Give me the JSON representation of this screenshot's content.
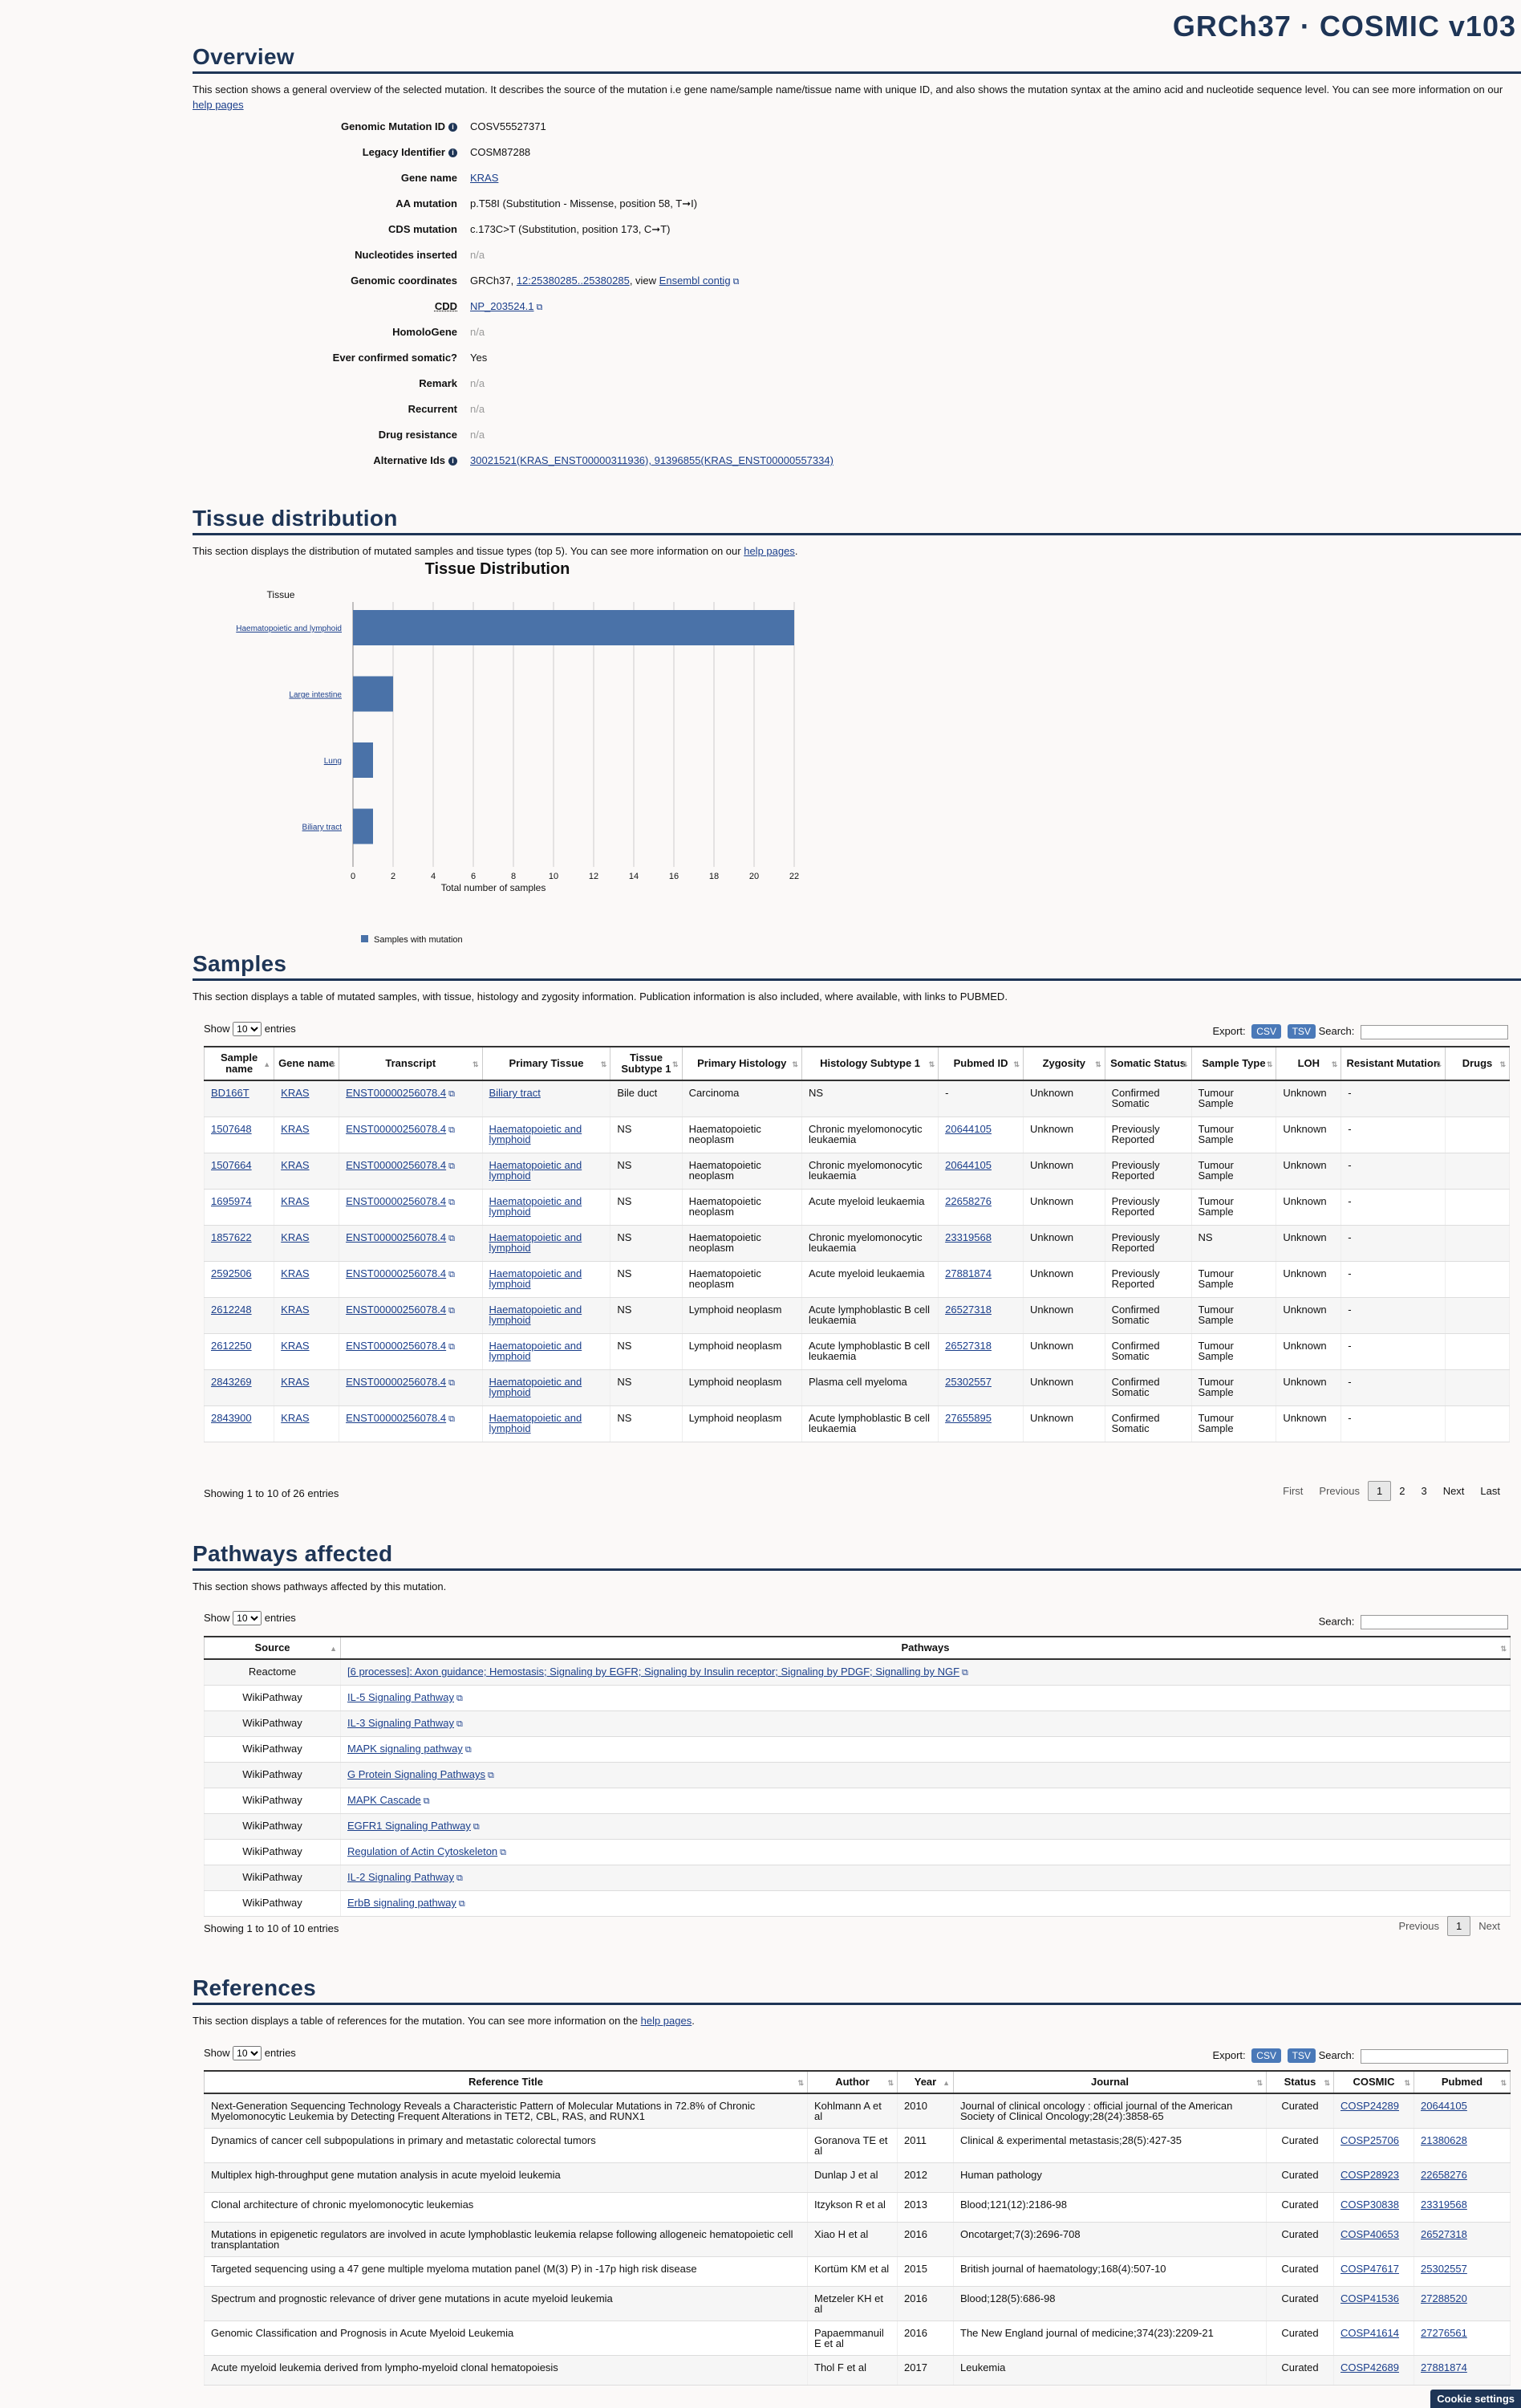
{
  "header": {
    "brand": "GRCh37 · COSMIC v103"
  },
  "overview": {
    "title": "Overview",
    "intro_a": "This section shows a general overview of the selected mutation. It describes the source of the mutation i.e gene name/sample name/tissue name with unique ID, and also shows the mutation syntax at the amino acid and nucleotide sequence level. You can see more information on our",
    "intro_link": "help pages",
    "rows": [
      {
        "key": "Genomic Mutation ID",
        "value": "COSV55527371"
      },
      {
        "key": "Legacy Identifier",
        "value": "COSM87288"
      },
      {
        "key": "Gene name",
        "value": "KRAS"
      },
      {
        "key": "AA mutation",
        "value": "p.T58I (Substitution - Missense, position 58, T➞I)"
      },
      {
        "key": "CDS mutation",
        "value": "c.173C>T (Substitution, position 173, C➞T)"
      },
      {
        "key": "Nucleotides inserted",
        "value": "n/a"
      },
      {
        "key": "Genomic coordinates",
        "value_a": "GRCh37,",
        "value_link1": "12:25380285..25380285",
        "value_b": ", view",
        "value_link2": "Ensembl contig"
      },
      {
        "key": "CDD",
        "value": "NP_203524.1"
      },
      {
        "key": "HomoloGene",
        "value": "n/a"
      },
      {
        "key": "Ever confirmed somatic?",
        "value": "Yes"
      },
      {
        "key": "Remark",
        "value": "n/a"
      },
      {
        "key": "Recurrent",
        "value": "n/a"
      },
      {
        "key": "Drug resistance",
        "value": "n/a"
      },
      {
        "key": "Alternative Ids",
        "value": "30021521(KRAS_ENST00000311936), 91396855(KRAS_ENST00000557334)"
      }
    ]
  },
  "tissue": {
    "title": "Tissue distribution",
    "intro_a": "This section displays the distribution of mutated samples and tissue types (top 5). You can see more information on our",
    "intro_link": "help pages",
    "intro_b": "."
  },
  "chart_data": {
    "type": "bar",
    "orientation": "horizontal",
    "title": "Tissue Distribution",
    "ylabel": "Tissue",
    "xlabel": "Total number of samples",
    "categories": [
      "Haematopoietic and lymphoid",
      "Large intestine",
      "Lung",
      "Biliary tract"
    ],
    "series": [
      {
        "name": "Samples with mutation",
        "values": [
          22,
          2,
          1,
          1
        ]
      }
    ],
    "xlim": [
      0,
      22
    ],
    "xticks": [
      0,
      2,
      4,
      6,
      8,
      10,
      12,
      14,
      16,
      18,
      20,
      22
    ],
    "grid": true,
    "legend": "bottom",
    "color": "#4a72a8"
  },
  "samples": {
    "title": "Samples",
    "intro": "This section displays a table of mutated samples, with tissue, histology and zygosity information. Publication information is also included, where available, with links to PUBMED.",
    "show": "Show",
    "entries": "entries",
    "page_size": "10",
    "export": "Export:",
    "csv": "CSV",
    "tsv": "TSV",
    "search": "Search:",
    "headers": [
      "Sample name",
      "Gene name",
      "Transcript",
      "Primary Tissue",
      "Tissue Subtype 1",
      "Primary Histology",
      "Histology Subtype 1",
      "Pubmed ID",
      "Zygosity",
      "Somatic Status",
      "Sample Type",
      "LOH",
      "Resistant Mutation",
      "Drugs"
    ],
    "rows": [
      [
        "BD166T",
        "KRAS",
        "ENST00000256078.4",
        "Biliary tract",
        "Bile duct",
        "Carcinoma",
        "NS",
        "-",
        "Unknown",
        "Confirmed Somatic",
        "Tumour Sample",
        "Unknown",
        "-",
        ""
      ],
      [
        "1507648",
        "KRAS",
        "ENST00000256078.4",
        "Haematopoietic and lymphoid",
        "NS",
        "Haematopoietic neoplasm",
        "Chronic myelomonocytic leukaemia",
        "20644105",
        "Unknown",
        "Previously Reported",
        "Tumour Sample",
        "Unknown",
        "-",
        ""
      ],
      [
        "1507664",
        "KRAS",
        "ENST00000256078.4",
        "Haematopoietic and lymphoid",
        "NS",
        "Haematopoietic neoplasm",
        "Chronic myelomonocytic leukaemia",
        "20644105",
        "Unknown",
        "Previously Reported",
        "Tumour Sample",
        "Unknown",
        "-",
        ""
      ],
      [
        "1695974",
        "KRAS",
        "ENST00000256078.4",
        "Haematopoietic and lymphoid",
        "NS",
        "Haematopoietic neoplasm",
        "Acute myeloid leukaemia",
        "22658276",
        "Unknown",
        "Previously Reported",
        "Tumour Sample",
        "Unknown",
        "-",
        ""
      ],
      [
        "1857622",
        "KRAS",
        "ENST00000256078.4",
        "Haematopoietic and lymphoid",
        "NS",
        "Haematopoietic neoplasm",
        "Chronic myelomonocytic leukaemia",
        "23319568",
        "Unknown",
        "Previously Reported",
        "NS",
        "Unknown",
        "-",
        ""
      ],
      [
        "2592506",
        "KRAS",
        "ENST00000256078.4",
        "Haematopoietic and lymphoid",
        "NS",
        "Haematopoietic neoplasm",
        "Acute myeloid leukaemia",
        "27881874",
        "Unknown",
        "Previously Reported",
        "Tumour Sample",
        "Unknown",
        "-",
        ""
      ],
      [
        "2612248",
        "KRAS",
        "ENST00000256078.4",
        "Haematopoietic and lymphoid",
        "NS",
        "Lymphoid neoplasm",
        "Acute lymphoblastic B cell leukaemia",
        "26527318",
        "Unknown",
        "Confirmed Somatic",
        "Tumour Sample",
        "Unknown",
        "-",
        ""
      ],
      [
        "2612250",
        "KRAS",
        "ENST00000256078.4",
        "Haematopoietic and lymphoid",
        "NS",
        "Lymphoid neoplasm",
        "Acute lymphoblastic B cell leukaemia",
        "26527318",
        "Unknown",
        "Confirmed Somatic",
        "Tumour Sample",
        "Unknown",
        "-",
        ""
      ],
      [
        "2843269",
        "KRAS",
        "ENST00000256078.4",
        "Haematopoietic and lymphoid",
        "NS",
        "Lymphoid neoplasm",
        "Plasma cell myeloma",
        "25302557",
        "Unknown",
        "Confirmed Somatic",
        "Tumour Sample",
        "Unknown",
        "-",
        ""
      ],
      [
        "2843900",
        "KRAS",
        "ENST00000256078.4",
        "Haematopoietic and lymphoid",
        "NS",
        "Lymphoid neoplasm",
        "Acute lymphoblastic B cell leukaemia",
        "27655895",
        "Unknown",
        "Confirmed Somatic",
        "Tumour Sample",
        "Unknown",
        "-",
        ""
      ]
    ],
    "info": "Showing 1 to 10 of 26 entries",
    "pager": [
      "First",
      "Previous",
      "1",
      "2",
      "3",
      "Next",
      "Last"
    ]
  },
  "pathways": {
    "title": "Pathways affected",
    "intro": "This section shows pathways affected by this mutation.",
    "show": "Show",
    "entries": "entries",
    "page_size": "10",
    "search": "Search:",
    "headers": [
      "Source",
      "Pathways"
    ],
    "rows": [
      [
        "Reactome",
        "[6 processes]: Axon guidance; Hemostasis; Signaling by EGFR; Signaling by Insulin receptor; Signaling by PDGF; Signalling by NGF"
      ],
      [
        "WikiPathway",
        "IL-5 Signaling Pathway"
      ],
      [
        "WikiPathway",
        "IL-3 Signaling Pathway"
      ],
      [
        "WikiPathway",
        "MAPK signaling pathway"
      ],
      [
        "WikiPathway",
        "G Protein Signaling Pathways"
      ],
      [
        "WikiPathway",
        "MAPK Cascade"
      ],
      [
        "WikiPathway",
        "EGFR1 Signaling Pathway"
      ],
      [
        "WikiPathway",
        "Regulation of Actin Cytoskeleton"
      ],
      [
        "WikiPathway",
        "IL-2 Signaling Pathway"
      ],
      [
        "WikiPathway",
        "ErbB signaling pathway"
      ]
    ],
    "info": "Showing 1 to 10 of 10 entries",
    "pager": [
      "Previous",
      "1",
      "Next"
    ]
  },
  "references": {
    "title": "References",
    "intro_a": "This section displays a table of references for the mutation. You can see more information on the",
    "intro_link": "help pages",
    "intro_b": ".",
    "show": "Show",
    "entries": "entries",
    "page_size": "10",
    "export": "Export:",
    "csv": "CSV",
    "tsv": "TSV",
    "search": "Search:",
    "headers": [
      "Reference Title",
      "Author",
      "Year",
      "Journal",
      "Status",
      "COSMIC",
      "Pubmed"
    ],
    "rows": [
      [
        "Next-Generation Sequencing Technology Reveals a Characteristic Pattern of Molecular Mutations in 72.8% of Chronic Myelomonocytic Leukemia by Detecting Frequent Alterations in TET2, CBL, RAS, and RUNX1",
        "Kohlmann A et al",
        "2010",
        "Journal of clinical oncology : official journal of the American Society of Clinical Oncology;28(24):3858-65",
        "Curated",
        "COSP24289",
        "20644105"
      ],
      [
        "Dynamics of cancer cell subpopulations in primary and metastatic colorectal tumors",
        "Goranova TE et al",
        "2011",
        "Clinical & experimental metastasis;28(5):427-35",
        "Curated",
        "COSP25706",
        "21380628"
      ],
      [
        "Multiplex high-throughput gene mutation analysis in acute myeloid leukemia",
        "Dunlap J et al",
        "2012",
        "Human pathology",
        "Curated",
        "COSP28923",
        "22658276"
      ],
      [
        "Clonal architecture of chronic myelomonocytic leukemias",
        "Itzykson R et al",
        "2013",
        "Blood;121(12):2186-98",
        "Curated",
        "COSP30838",
        "23319568"
      ],
      [
        "Mutations in epigenetic regulators are involved in acute lymphoblastic leukemia relapse following allogeneic hematopoietic cell transplantation",
        "Xiao H et al",
        "2016",
        "Oncotarget;7(3):2696-708",
        "Curated",
        "COSP40653",
        "26527318"
      ],
      [
        "Targeted sequencing using a 47 gene multiple myeloma mutation panel (M(3) P) in -17p high risk disease",
        "Kortüm KM et al",
        "2015",
        "British journal of haematology;168(4):507-10",
        "Curated",
        "COSP47617",
        "25302557"
      ],
      [
        "Spectrum and prognostic relevance of driver gene mutations in acute myeloid leukemia",
        "Metzeler KH et al",
        "2016",
        "Blood;128(5):686-98",
        "Curated",
        "COSP41536",
        "27288520"
      ],
      [
        "Genomic Classification and Prognosis in Acute Myeloid Leukemia",
        "Papaemmanuil E et al",
        "2016",
        "The New England journal of medicine;374(23):2209-21",
        "Curated",
        "COSP41614",
        "27276561"
      ],
      [
        "Acute myeloid leukemia derived from lympho-myeloid clonal hematopoiesis",
        "Thol F et al",
        "2017",
        "Leukemia",
        "Curated",
        "COSP42689",
        "27881874"
      ]
    ]
  },
  "cookie": "Cookie settings"
}
